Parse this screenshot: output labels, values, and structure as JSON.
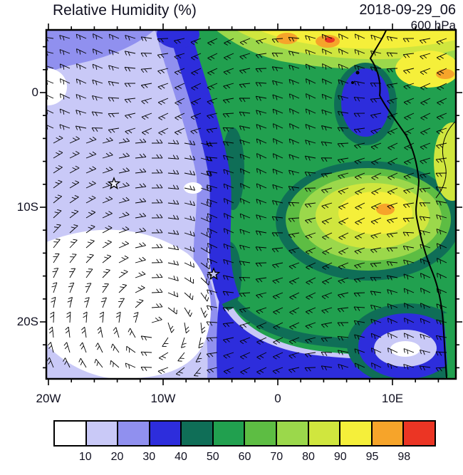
{
  "header": {
    "title": "Relative Humidity (%)",
    "datetime": "2018-09-29_06",
    "level": "600 hPa"
  },
  "axes": {
    "x_ticks": [
      "20W",
      "10W",
      "0",
      "10E"
    ],
    "y_ticks": [
      "0",
      "10S",
      "20S"
    ]
  },
  "colorbar": {
    "values": [
      "10",
      "20",
      "30",
      "40",
      "50",
      "60",
      "70",
      "80",
      "90",
      "95",
      "98"
    ],
    "colors": [
      "#ffffff",
      "#c9c9f7",
      "#9090ef",
      "#2d2ddc",
      "#0f6e57",
      "#21a04f",
      "#5dbd43",
      "#9bd84b",
      "#d0e63e",
      "#f5ef3a",
      "#f6a42a",
      "#eb3524"
    ]
  },
  "chart_data": {
    "type": "heatmap",
    "title": "Relative Humidity (%)",
    "valid_time": "2018-09-29_06",
    "pressure_level": "600 hPa",
    "units": "%",
    "x_axis": {
      "tick_labels": [
        "20W",
        "10W",
        "0",
        "10E"
      ],
      "range_deg_lon": [
        -20.2,
        15.5
      ]
    },
    "y_axis": {
      "tick_labels": [
        "0",
        "10S",
        "20S"
      ],
      "range_deg_lat": [
        -25,
        5.5
      ]
    },
    "contour_levels": [
      10,
      20,
      30,
      40,
      50,
      60,
      70,
      80,
      90,
      95,
      98
    ],
    "palette": [
      "#ffffff",
      "#c9c9f7",
      "#9090ef",
      "#2d2ddc",
      "#0f6e57",
      "#21a04f",
      "#5dbd43",
      "#9bd84b",
      "#d0e63e",
      "#f5ef3a",
      "#f6a42a",
      "#eb3524"
    ],
    "overlays": [
      "wind barbs",
      "African coastline"
    ],
    "markers": [
      {
        "type": "star",
        "lon_deg": -14.3,
        "lat_deg": -8.0
      },
      {
        "type": "star",
        "lon_deg": -5.6,
        "lat_deg": -15.9
      }
    ],
    "features": [
      {
        "region": "southwest quadrant (subtropical anticyclone core)",
        "rh_percent": "<10"
      },
      {
        "region": "west / northwest ocean area",
        "rh_percent": "10-30"
      },
      {
        "region": "curved band from north-center down to south-center and along south edge",
        "rh_percent": "30-40"
      },
      {
        "region": "eastern half over central Africa",
        "rh_percent": "50-80"
      },
      {
        "region": "northern band and central-east maxima",
        "rh_percent": "90-98"
      }
    ]
  }
}
